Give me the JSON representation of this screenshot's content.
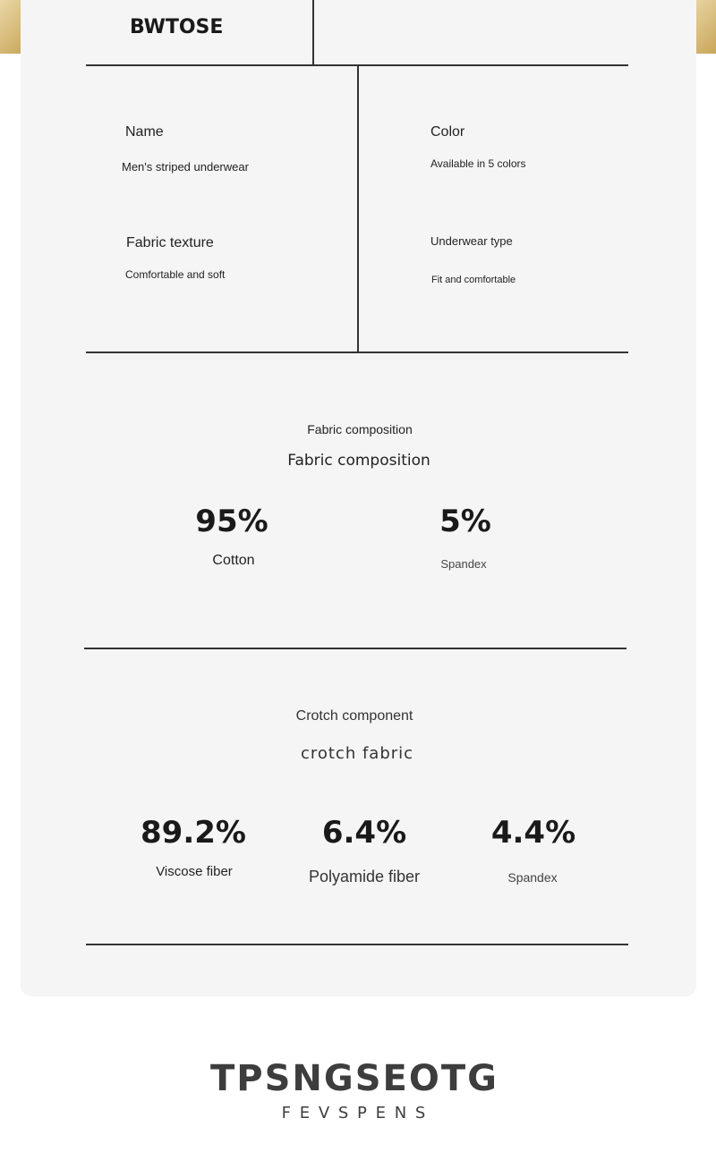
{
  "brand": "BWTOSE",
  "specs": {
    "name_label": "Name",
    "name_value": "Men's striped underwear",
    "color_label": "Color",
    "color_value": "Available in 5 colors",
    "fabric_label": "Fabric texture",
    "fabric_value": "Comfortable and soft",
    "type_label": "Underwear type",
    "type_value": "Fit and comfortable"
  },
  "composition": {
    "subtitle": "Fabric composition",
    "title": "Fabric composition",
    "items": [
      {
        "value": "95%",
        "label": "Cotton"
      },
      {
        "value": "5%",
        "label": "Spandex"
      }
    ]
  },
  "crotch": {
    "subtitle": "Crotch component",
    "title": "crotch fabric",
    "items": [
      {
        "value": "89.2%",
        "label": "Viscose fiber"
      },
      {
        "value": "6.4%",
        "label": "Polyamide fiber"
      },
      {
        "value": "4.4%",
        "label": "Spandex"
      }
    ]
  },
  "footer": {
    "logo": "TPSNGSEOTG",
    "tagline": "F E V S P E N S"
  }
}
